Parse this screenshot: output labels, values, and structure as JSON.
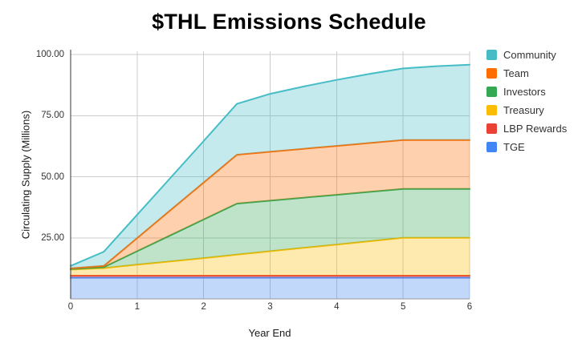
{
  "title": "$THL Emissions Schedule",
  "chart_data": {
    "type": "area",
    "stacked": true,
    "title": "$THL Emissions Schedule",
    "xlabel": "Year End",
    "ylabel": "Circulating Supply (Millions)",
    "xlim": [
      0,
      6
    ],
    "ylim": [
      0,
      100
    ],
    "grid": true,
    "legend_position": "right",
    "x": [
      0,
      0.5,
      1,
      1.5,
      2,
      2.5,
      3,
      3.5,
      4,
      4.5,
      5,
      5.5,
      6
    ],
    "x_ticks": [
      "0",
      "1",
      "2",
      "3",
      "4",
      "5",
      "6"
    ],
    "y_ticks": [
      "25.00",
      "50.00",
      "75.00",
      "100.00"
    ],
    "series_note": "values are per-series millions of THL; stack bottom-to-top in listed order; legend shows reverse order",
    "series": [
      {
        "name": "TGE",
        "color": "#4285F4",
        "values": [
          8.7,
          8.7,
          8.7,
          8.7,
          8.7,
          8.7,
          8.7,
          8.7,
          8.7,
          8.7,
          8.7,
          8.7,
          8.7
        ]
      },
      {
        "name": "LBP Rewards",
        "color": "#EA4335",
        "values": [
          0.8,
          0.8,
          0.8,
          0.8,
          0.8,
          0.8,
          0.8,
          0.8,
          0.8,
          0.8,
          0.8,
          0.8,
          0.8
        ]
      },
      {
        "name": "Treasury",
        "color": "#FBBC04",
        "values": [
          2.5,
          3.1,
          4.5,
          5.8,
          7.2,
          8.6,
          10.0,
          11.4,
          12.7,
          14.1,
          15.5,
          15.5,
          15.5
        ]
      },
      {
        "name": "Investors",
        "color": "#34A853",
        "values": [
          0.2,
          0.4,
          5.5,
          10.7,
          15.8,
          20.9,
          20.7,
          20.5,
          20.4,
          20.2,
          20.0,
          20.0,
          20.0
        ]
      },
      {
        "name": "Team",
        "color": "#FF6D01",
        "values": [
          0.3,
          0.5,
          5.4,
          10.3,
          15.1,
          20.0,
          20.0,
          20.0,
          20.0,
          20.0,
          20.0,
          20.0,
          20.0
        ]
      },
      {
        "name": "Community",
        "color": "#46BDC6",
        "values": [
          1.0,
          5.8,
          9.5,
          13.2,
          17.0,
          20.8,
          23.7,
          25.5,
          27.0,
          28.3,
          29.3,
          30.2,
          30.8
        ]
      }
    ],
    "cumulative_tops_at_year_6": {
      "TGE": 8.7,
      "LBP Rewards": 9.5,
      "Treasury": 25.0,
      "Investors": 45.0,
      "Team": 65.0,
      "Community": 95.8
    }
  },
  "colors": {
    "background": "#ffffff",
    "gridline": "#cccccc",
    "axis": "#333333",
    "tick_text": "#333333",
    "title_text": "#000000"
  }
}
